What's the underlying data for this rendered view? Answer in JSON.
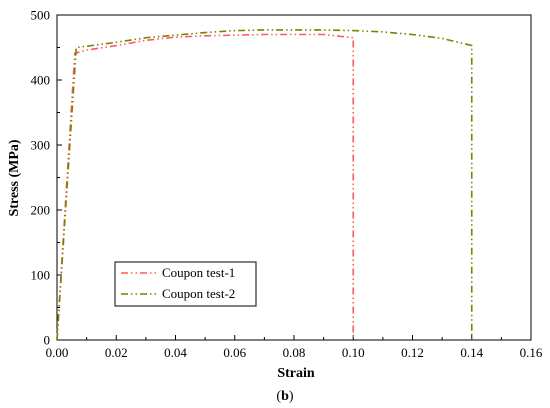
{
  "chart_data": {
    "type": "line",
    "xlabel": "Strain",
    "ylabel": "Stress (MPa)",
    "caption_open": "(",
    "caption_letter": "b",
    "caption_close": ")",
    "xlim": [
      0,
      0.16
    ],
    "ylim": [
      0,
      500
    ],
    "x_ticks": [
      "0.00",
      "0.02",
      "0.04",
      "0.06",
      "0.08",
      "0.10",
      "0.12",
      "0.14",
      "0.16"
    ],
    "y_ticks": [
      "0",
      "100",
      "200",
      "300",
      "400",
      "500"
    ],
    "grid": false,
    "legend_position": "bottom-left",
    "series": [
      {
        "name": "Coupon test-1",
        "color": "#ff5a5a",
        "dash": "dash-dot-dot",
        "x": [
          0.0,
          0.006,
          0.01,
          0.02,
          0.03,
          0.04,
          0.05,
          0.06,
          0.07,
          0.08,
          0.09,
          0.1,
          0.1
        ],
        "y": [
          0,
          441,
          446,
          453,
          461,
          466,
          468,
          469,
          470,
          470,
          470,
          465,
          0
        ]
      },
      {
        "name": "Coupon test-2",
        "color": "#7f7f00",
        "dash": "dash-dot-dot",
        "x": [
          0.0,
          0.0065,
          0.01,
          0.02,
          0.03,
          0.04,
          0.05,
          0.06,
          0.07,
          0.08,
          0.09,
          0.1,
          0.11,
          0.12,
          0.13,
          0.14,
          0.14
        ],
        "y": [
          0,
          450,
          452,
          458,
          465,
          469,
          473,
          476,
          477,
          477,
          477,
          476,
          474,
          470,
          464,
          453,
          0
        ]
      }
    ]
  }
}
